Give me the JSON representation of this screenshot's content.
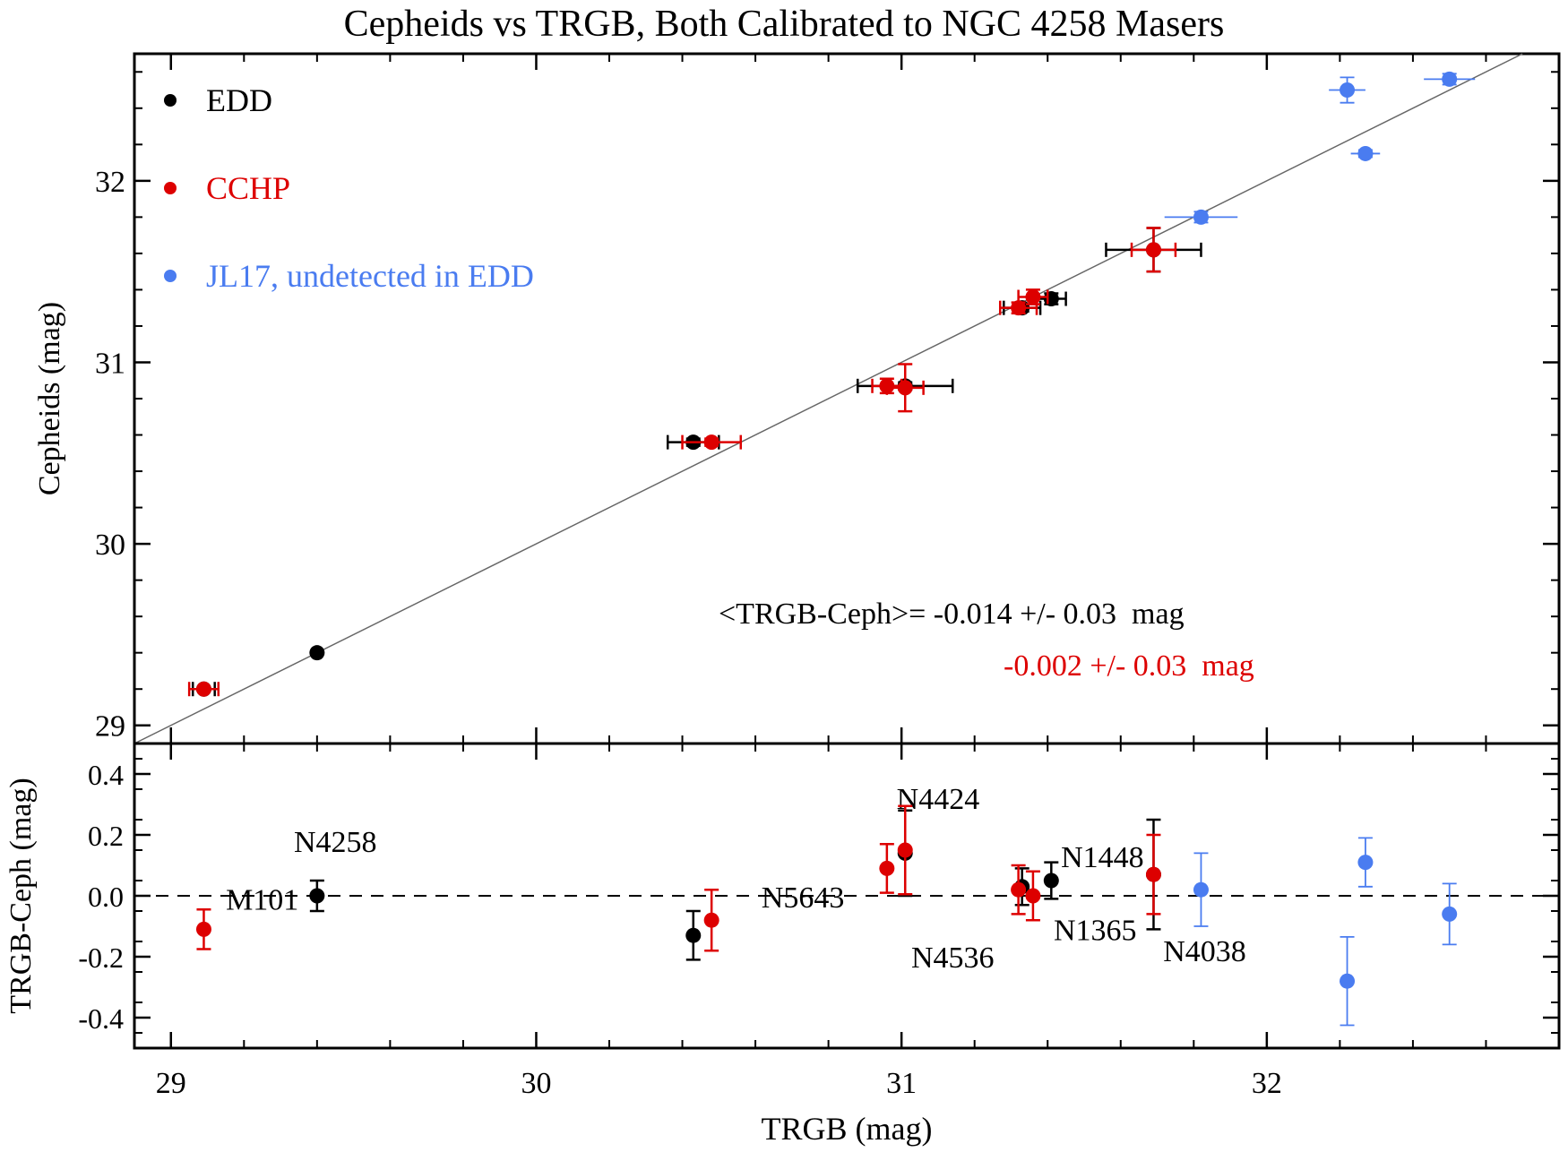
{
  "chart_data": [
    {
      "type": "scatter",
      "title": "Cepheids vs TRGB, Both Calibrated to NGC 4258 Masers",
      "xlabel": "TRGB (mag)",
      "ylabel": "Cepheids (mag)",
      "xlim": [
        28.9,
        32.8
      ],
      "ylim": [
        28.9,
        32.7
      ],
      "xticks": [
        "29",
        "30",
        "31",
        "32"
      ],
      "yticks": [
        "29",
        "30",
        "31",
        "32"
      ],
      "grid": false,
      "legend_position": "top-left",
      "reference_line": "y = x",
      "annotation_line1": "<TRGB-Ceph>= -0.014 +/- 0.03  mag",
      "annotation_line2": "-0.002 +/- 0.03  mag",
      "series": [
        {
          "name": "EDD",
          "color": "#000000",
          "points": [
            {
              "x": 29.09,
              "y": 29.2,
              "xerr": 0.03,
              "yerr": 0.01
            },
            {
              "x": 29.4,
              "y": 29.4,
              "xerr": 0.0,
              "yerr": 0.0
            },
            {
              "x": 30.43,
              "y": 30.56,
              "xerr": 0.07,
              "yerr": 0.02
            },
            {
              "x": 31.01,
              "y": 30.87,
              "xerr": 0.13,
              "yerr": 0.02
            },
            {
              "x": 31.33,
              "y": 31.3,
              "xerr": 0.05,
              "yerr": 0.02
            },
            {
              "x": 31.41,
              "y": 31.35,
              "xerr": 0.04,
              "yerr": 0.03
            },
            {
              "x": 31.69,
              "y": 31.62,
              "xerr": 0.13,
              "yerr": 0.12
            }
          ]
        },
        {
          "name": "CCHP",
          "color": "#dd0000",
          "points": [
            {
              "x": 29.09,
              "y": 29.2,
              "xerr": 0.04,
              "yerr": 0.01
            },
            {
              "x": 30.48,
              "y": 30.56,
              "xerr": 0.08,
              "yerr": 0.02
            },
            {
              "x": 30.96,
              "y": 30.87,
              "xerr": 0.04,
              "yerr": 0.04
            },
            {
              "x": 31.01,
              "y": 30.86,
              "xerr": 0.05,
              "yerr": 0.13
            },
            {
              "x": 31.32,
              "y": 31.3,
              "xerr": 0.05,
              "yerr": 0.03
            },
            {
              "x": 31.36,
              "y": 31.36,
              "xerr": 0.04,
              "yerr": 0.04
            },
            {
              "x": 31.69,
              "y": 31.62,
              "xerr": 0.06,
              "yerr": 0.12
            }
          ]
        },
        {
          "name": "JL17, undetected in EDD",
          "color": "#4a7cf0",
          "points": [
            {
              "x": 31.82,
              "y": 31.8,
              "xerr": 0.1,
              "yerr": 0.03
            },
            {
              "x": 32.22,
              "y": 32.5,
              "xerr": 0.05,
              "yerr": 0.07
            },
            {
              "x": 32.27,
              "y": 32.15,
              "xerr": 0.04,
              "yerr": 0.02
            },
            {
              "x": 32.5,
              "y": 32.56,
              "xerr": 0.07,
              "yerr": 0.03
            }
          ]
        }
      ]
    },
    {
      "type": "scatter",
      "xlabel": "TRGB (mag)",
      "ylabel": "TRGB-Ceph (mag)",
      "xlim": [
        28.9,
        32.8
      ],
      "ylim": [
        -0.5,
        0.5
      ],
      "xticks": [
        "29",
        "30",
        "31",
        "32"
      ],
      "yticks": [
        "0.4",
        "0.2",
        "0.0",
        "-0.2",
        "-0.4"
      ],
      "reference_line": "y = 0 (dashed)",
      "labels": [
        {
          "text": "M101",
          "x": 29.25,
          "y": -0.01
        },
        {
          "text": "N4258",
          "x": 29.45,
          "y": 0.18
        },
        {
          "text": "N5643",
          "x": 30.73,
          "y": -0.003
        },
        {
          "text": "N4424",
          "x": 31.1,
          "y": 0.32
        },
        {
          "text": "N4536",
          "x": 31.14,
          "y": -0.2
        },
        {
          "text": "N1448",
          "x": 31.55,
          "y": 0.13
        },
        {
          "text": "N1365",
          "x": 31.53,
          "y": -0.11
        },
        {
          "text": "N4038",
          "x": 31.83,
          "y": -0.18
        }
      ],
      "series": [
        {
          "name": "EDD",
          "color": "#000000",
          "points": [
            {
              "x": 29.4,
              "y": 0.0,
              "yerr": 0.05
            },
            {
              "x": 30.43,
              "y": -0.13,
              "yerr": 0.08
            },
            {
              "x": 31.01,
              "y": 0.14,
              "yerr": 0.14
            },
            {
              "x": 31.33,
              "y": 0.03,
              "yerr": 0.06
            },
            {
              "x": 31.41,
              "y": 0.05,
              "yerr": 0.06
            },
            {
              "x": 31.69,
              "y": 0.07,
              "yerr": 0.18
            }
          ]
        },
        {
          "name": "CCHP",
          "color": "#dd0000",
          "points": [
            {
              "x": 29.09,
              "y": -0.11,
              "yerr": 0.065
            },
            {
              "x": 30.48,
              "y": -0.08,
              "yerr": 0.1
            },
            {
              "x": 30.96,
              "y": 0.09,
              "yerr": 0.08
            },
            {
              "x": 31.01,
              "y": 0.15,
              "yerr": 0.145
            },
            {
              "x": 31.32,
              "y": 0.02,
              "yerr": 0.08
            },
            {
              "x": 31.36,
              "y": 0.0,
              "yerr": 0.08
            },
            {
              "x": 31.69,
              "y": 0.07,
              "yerr": 0.13
            }
          ]
        },
        {
          "name": "JL17, undetected in EDD",
          "color": "#4a7cf0",
          "points": [
            {
              "x": 31.82,
              "y": 0.02,
              "yerr": 0.12
            },
            {
              "x": 32.22,
              "y": -0.28,
              "yerr": 0.145
            },
            {
              "x": 32.27,
              "y": 0.11,
              "yerr": 0.08
            },
            {
              "x": 32.5,
              "y": -0.06,
              "yerr": 0.1
            }
          ]
        }
      ]
    }
  ]
}
